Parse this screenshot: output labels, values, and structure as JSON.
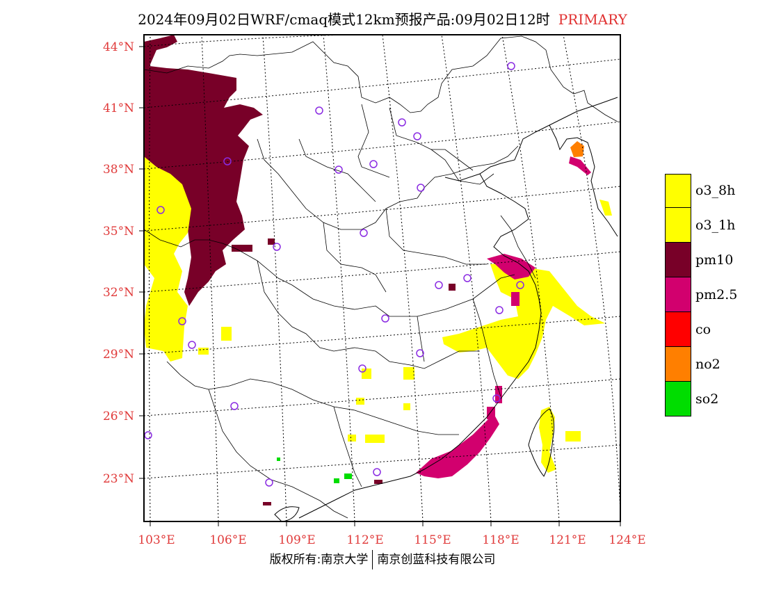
{
  "title": {
    "main": "2024年09月02日WRF/cmaq模式12km预报产品:09月02日12时",
    "primary": "PRIMARY"
  },
  "map": {
    "lat_labels": [
      "44°N",
      "41°N",
      "38°N",
      "35°N",
      "32°N",
      "29°N",
      "26°N",
      "23°N"
    ],
    "lon_labels": [
      "103°E",
      "106°E",
      "109°E",
      "112°E",
      "115°E",
      "118°E",
      "121°E",
      "124°E"
    ],
    "colors": {
      "o3_8h": "#ffff00",
      "o3_1h": "#ffff00",
      "pm10": "#780028",
      "pm25": "#d2006e",
      "co": "#ff0000",
      "no2": "#ff7f00",
      "so2": "#00dd00",
      "station": "#8a2be2"
    }
  },
  "legend": {
    "items": [
      {
        "label": "o3_8h",
        "color": "#ffff00"
      },
      {
        "label": "o3_1h",
        "color": "#ffff00"
      },
      {
        "label": "pm10",
        "color": "#780028"
      },
      {
        "label": "pm2.5",
        "color": "#d2006e"
      },
      {
        "label": "co",
        "color": "#ff0000"
      },
      {
        "label": "no2",
        "color": "#ff7f00"
      },
      {
        "label": "so2",
        "color": "#00dd00"
      }
    ]
  },
  "footer": {
    "left": "版权所有:南京大学",
    "right": "南京创蓝科技有限公司"
  }
}
